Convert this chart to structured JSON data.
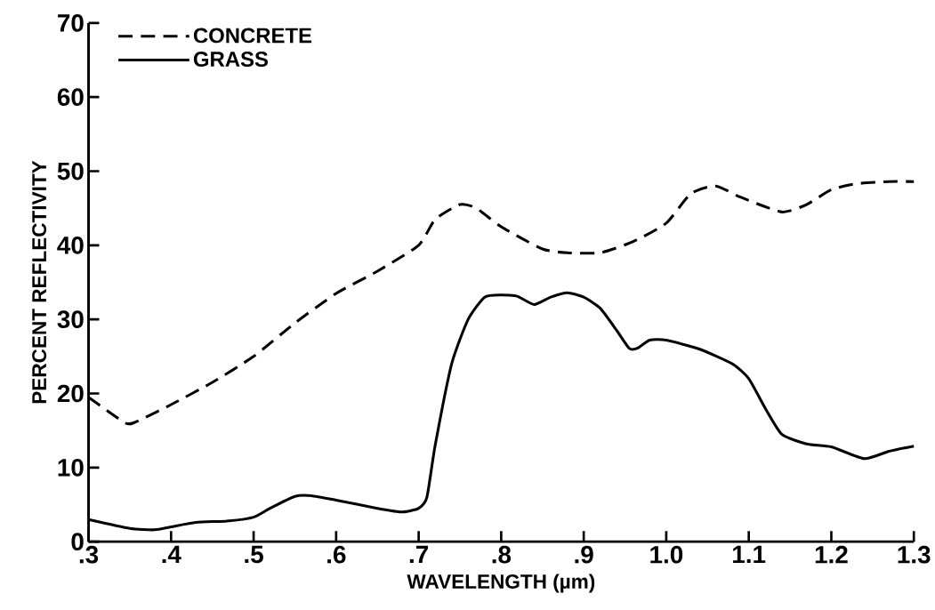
{
  "chart_data": {
    "type": "line",
    "xlabel": "WAVELENGTH (µm)",
    "ylabel": "PERCENT REFLECTIVITY",
    "xlim": [
      0.3,
      1.3
    ],
    "ylim": [
      0,
      70
    ],
    "xticks": [
      {
        "value": 0.3,
        "label": ".3"
      },
      {
        "value": 0.4,
        "label": ".4"
      },
      {
        "value": 0.5,
        "label": ".5"
      },
      {
        "value": 0.6,
        "label": ".6"
      },
      {
        "value": 0.7,
        "label": ".7"
      },
      {
        "value": 0.8,
        "label": ".8"
      },
      {
        "value": 0.9,
        "label": ".9"
      },
      {
        "value": 1.0,
        "label": "1.0"
      },
      {
        "value": 1.1,
        "label": "1.1"
      },
      {
        "value": 1.2,
        "label": "1.2"
      },
      {
        "value": 1.3,
        "label": "1.3"
      }
    ],
    "yticks": [
      0,
      10,
      20,
      30,
      40,
      50,
      60,
      70
    ],
    "legend": "top left",
    "marker": "none",
    "grid": false,
    "series": [
      {
        "name": "CONCRETE",
        "color": "#000000",
        "line_style": "dashed",
        "x": [
          0.3,
          0.345,
          0.36,
          0.4,
          0.45,
          0.5,
          0.55,
          0.6,
          0.65,
          0.7,
          0.72,
          0.75,
          0.77,
          0.8,
          0.85,
          0.88,
          0.92,
          0.96,
          1.0,
          1.03,
          1.06,
          1.09,
          1.14,
          1.17,
          1.2,
          1.23,
          1.27,
          1.3
        ],
        "values": [
          19.5,
          16,
          16.3,
          18.5,
          21.5,
          25,
          29.5,
          33.5,
          36.5,
          40,
          43.5,
          45.5,
          45,
          42.5,
          39.5,
          39,
          39,
          40.5,
          43,
          47,
          48,
          46.5,
          44.5,
          45.5,
          47.5,
          48.3,
          48.6,
          48.6
        ]
      },
      {
        "name": "GRASS",
        "color": "#000000",
        "line_style": "solid",
        "x": [
          0.3,
          0.35,
          0.38,
          0.4,
          0.43,
          0.47,
          0.5,
          0.52,
          0.55,
          0.57,
          0.6,
          0.65,
          0.68,
          0.7,
          0.71,
          0.72,
          0.74,
          0.76,
          0.78,
          0.8,
          0.82,
          0.84,
          0.86,
          0.88,
          0.9,
          0.92,
          0.94,
          0.955,
          0.965,
          0.98,
          1.0,
          1.04,
          1.08,
          1.1,
          1.12,
          1.14,
          1.17,
          1.2,
          1.24,
          1.27,
          1.3
        ],
        "values": [
          3,
          1.8,
          1.6,
          2,
          2.6,
          2.8,
          3.3,
          4.5,
          6.1,
          6.2,
          5.6,
          4.5,
          4,
          4.5,
          6,
          13,
          24,
          30,
          33,
          33.3,
          33.1,
          32,
          33,
          33.6,
          33,
          31.5,
          28.5,
          26.1,
          26.1,
          27.2,
          27.2,
          26,
          24,
          22,
          18,
          14.5,
          13.2,
          12.8,
          11.2,
          12.2,
          12.9
        ]
      }
    ]
  }
}
